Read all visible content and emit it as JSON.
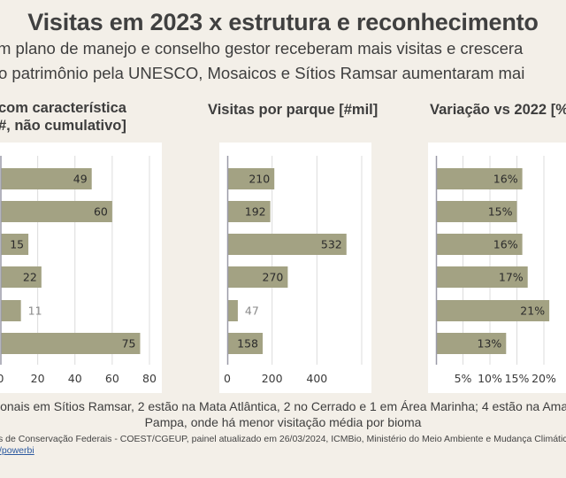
{
  "header": {
    "title": "Visitas em 2023 x estrutura e reconhecimento",
    "subtitle_line1": "m plano de manejo e conselho gestor receberam mais visitas e crescera",
    "subtitle_line2": "o patrimônio pela UNESCO, Mosaicos e Sítios Ramsar aumentaram mai"
  },
  "colors": {
    "background": "#f3efe8",
    "panel": "#ffffff",
    "bar": "#a3a283",
    "grid": "#dcdcdc",
    "axis": "#9a9aa8",
    "label_dark": "#2b2b2b",
    "label_light": "#8a8a8a"
  },
  "chart_data": [
    {
      "type": "bar",
      "orientation": "horizontal",
      "title": "com característica #, não cumulativo]",
      "title_line1": "com característica",
      "title_line2": "#, não cumulativo]",
      "values": [
        49,
        60,
        15,
        22,
        11,
        75
      ],
      "data_labels": [
        "49",
        "60",
        "15",
        "22",
        "11",
        "75"
      ],
      "xlim": [
        0,
        80
      ],
      "xticks": [
        0,
        20,
        40,
        60,
        80
      ],
      "xtick_labels": [
        "0",
        "20",
        "40",
        "60",
        "80"
      ],
      "grid": true
    },
    {
      "type": "bar",
      "orientation": "horizontal",
      "title": "Visitas por parque [#mil]",
      "values": [
        210,
        192,
        532,
        270,
        47,
        158
      ],
      "data_labels": [
        "210",
        "192",
        "532",
        "270",
        "47",
        "158"
      ],
      "xlim": [
        0,
        600
      ],
      "xticks": [
        0,
        200,
        400,
        600
      ],
      "xtick_labels": [
        "0",
        "200",
        "400",
        ""
      ],
      "grid": true
    },
    {
      "type": "bar",
      "orientation": "horizontal",
      "title": "Variação vs 2022 [%",
      "values": [
        16,
        15,
        16,
        17,
        21,
        13
      ],
      "data_labels": [
        "16%",
        "15%",
        "16%",
        "17%",
        "21%",
        "13%"
      ],
      "xlim": [
        0,
        20
      ],
      "xticks": [
        0,
        5,
        10,
        15,
        20
      ],
      "xtick_labels": [
        "",
        "5%",
        "10%",
        "15%",
        "20%"
      ],
      "grid": true
    }
  ],
  "footer": {
    "note_line1": "ionais em Sítios Ramsar, 2 estão na Mata Atlântica, 2 no Cerrado e 1 em Área Marinha; 4 estão na Amazônia, 1",
    "note_line2": "Pampa, onde há menor visitação média por bioma",
    "source": "s de Conservação Federais - COEST/CGEUP, painel atualizado em 26/03/2024, ICMBio, Ministério do Meio Ambiente e Mudança Climática; Bas",
    "link": "/powerbi"
  }
}
